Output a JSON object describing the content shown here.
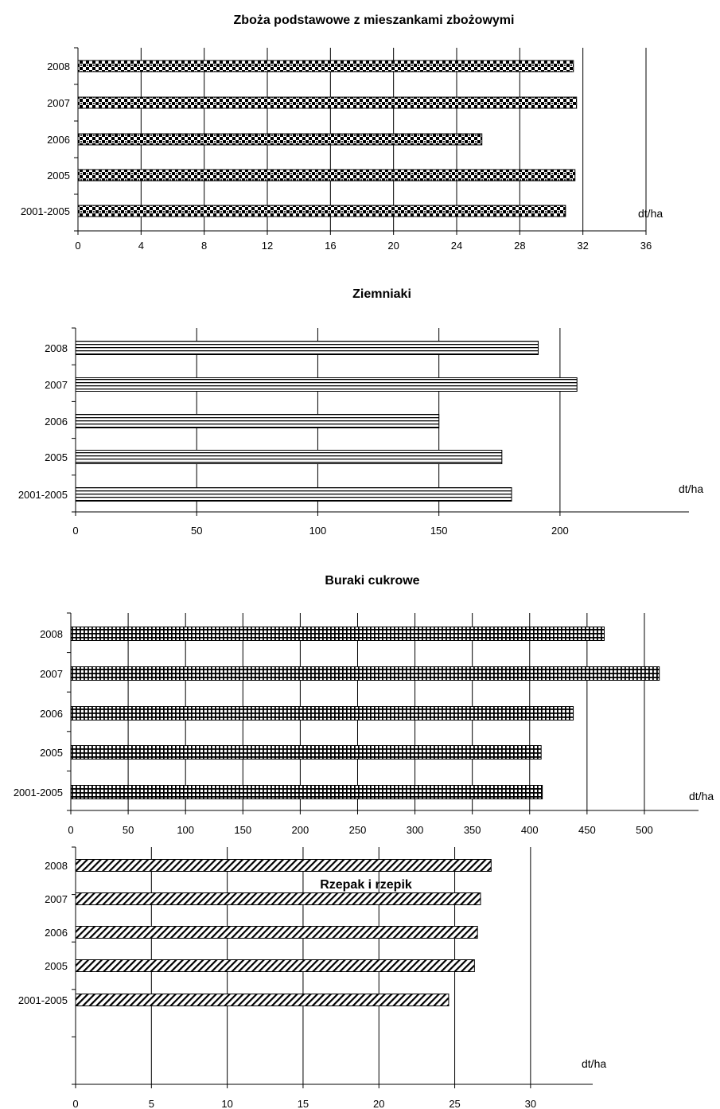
{
  "chart_data": [
    {
      "type": "bar",
      "orientation": "horizontal",
      "title": "Zboża podstawowe z mieszankami zbożowymi",
      "unit_label": "dt/ha",
      "categories": [
        "2008",
        "2007",
        "2006",
        "2005",
        "2001-2005"
      ],
      "values": [
        31.4,
        31.6,
        25.6,
        31.5,
        30.9
      ],
      "xlim": [
        0,
        36
      ],
      "xticks": [
        "0",
        "4",
        "8",
        "12",
        "16",
        "20",
        "24",
        "28",
        "32",
        "36"
      ],
      "grid": "vertical",
      "pattern": "checker"
    },
    {
      "type": "bar",
      "orientation": "horizontal",
      "title": "Ziemniaki",
      "unit_label": "dt/ha",
      "categories": [
        "2008",
        "2007",
        "2006",
        "2005",
        "2001-2005"
      ],
      "values": [
        191,
        207,
        150,
        176,
        180
      ],
      "xlim": [
        0,
        225
      ],
      "xticks": [
        "0",
        "50",
        "100",
        "150",
        "200"
      ],
      "grid": "vertical",
      "pattern": "hstripes"
    },
    {
      "type": "bar",
      "orientation": "horizontal",
      "title": "Buraki cukrowe",
      "unit_label": "dt/ha",
      "categories": [
        "2008",
        "2007",
        "2006",
        "2005",
        "2001-2005"
      ],
      "values": [
        465,
        513,
        438,
        410,
        411
      ],
      "xlim": [
        0,
        525
      ],
      "xticks": [
        "0",
        "50",
        "100",
        "150",
        "200",
        "250",
        "300",
        "350",
        "400",
        "450",
        "500"
      ],
      "grid": "vertical",
      "pattern": "grid"
    },
    {
      "type": "bar",
      "orientation": "horizontal",
      "title": "Rzepak i rzepik",
      "unit_label": "dt/ha",
      "categories": [
        "2008",
        "2007",
        "2006",
        "2005",
        "2001-2005"
      ],
      "values": [
        27.4,
        26.7,
        26.5,
        26.3,
        24.6
      ],
      "xlim": [
        0,
        32
      ],
      "xticks": [
        "0",
        "5",
        "10",
        "15",
        "20",
        "25",
        "30"
      ],
      "grid": "vertical",
      "pattern": "diagonal"
    }
  ]
}
